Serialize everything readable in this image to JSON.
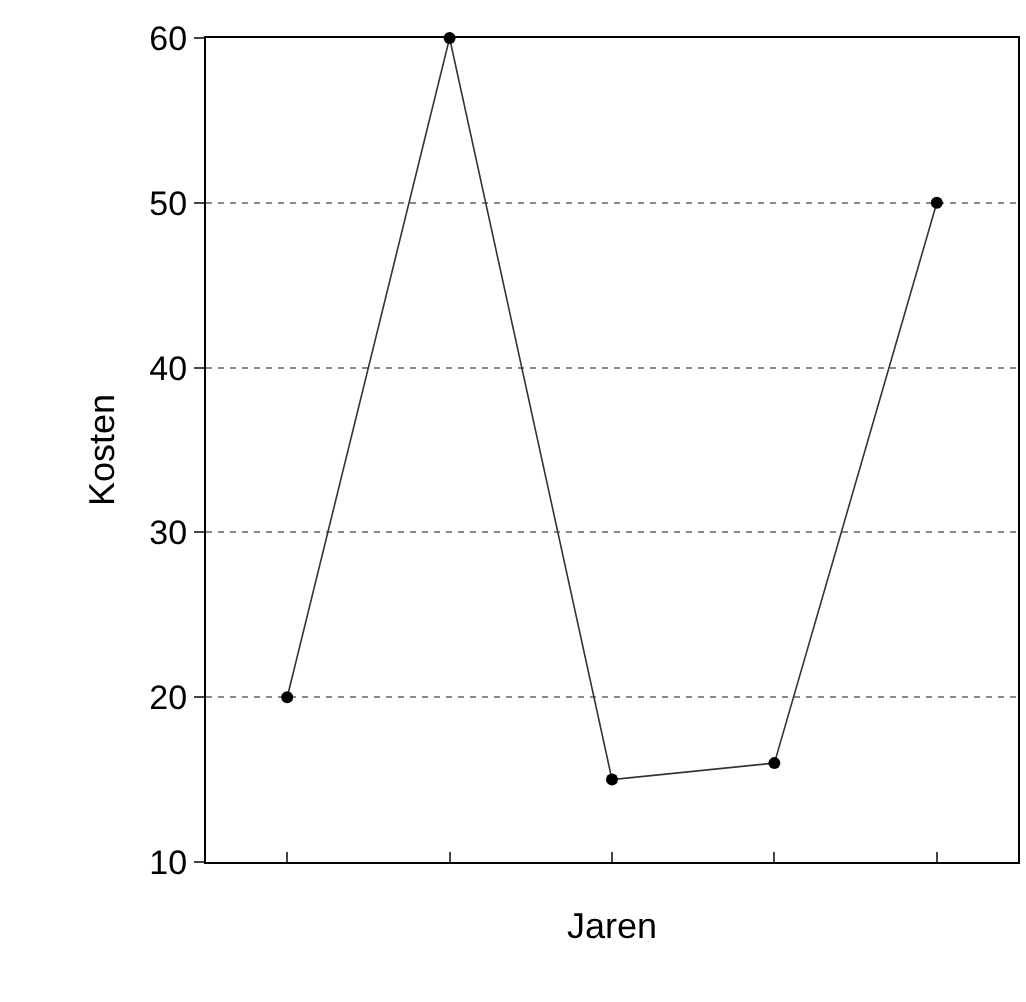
{
  "chart_data": {
    "type": "line",
    "xlabel": "Jaren",
    "ylabel": "Kosten",
    "categories": [
      null,
      null,
      null,
      null,
      null
    ],
    "series": [
      {
        "color": "#333333",
        "values": [
          20,
          60,
          15,
          16,
          50
        ]
      }
    ],
    "ylim": [
      10,
      60
    ],
    "yticks": [
      10,
      20,
      30,
      40,
      50,
      60
    ],
    "grid": "y",
    "marker": "circle",
    "line_style": "solid",
    "tick_labels": "y"
  }
}
